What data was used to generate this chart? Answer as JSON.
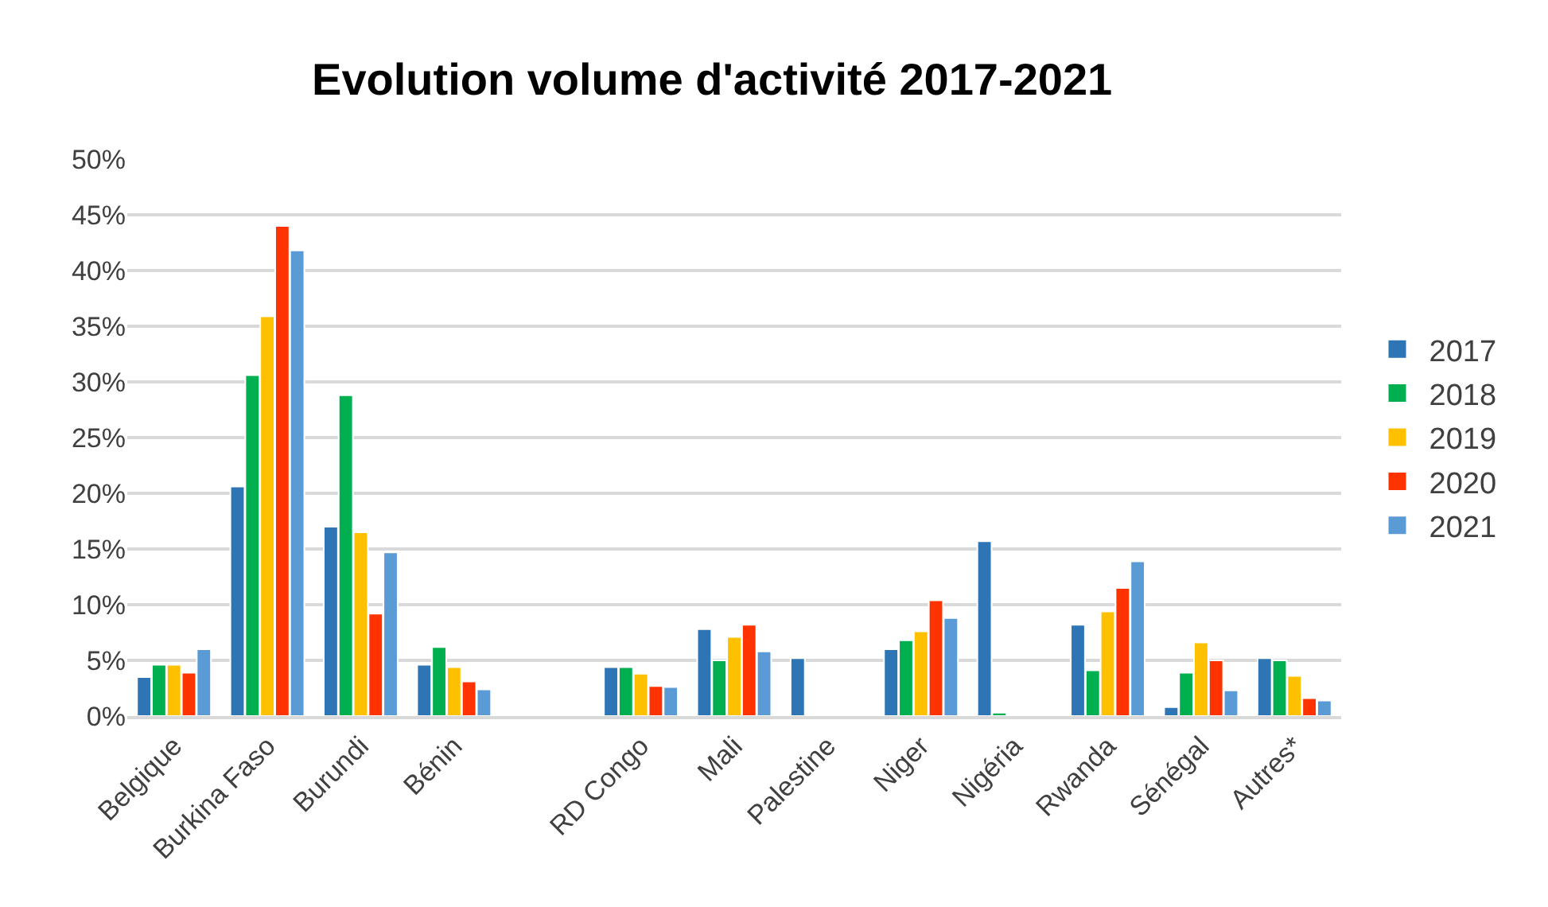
{
  "chart_data": {
    "type": "bar",
    "title": "Evolution volume d'activité 2017-2021",
    "categories": [
      "Belgique",
      "Burkina Faso",
      "Burundi",
      "Bénin",
      null,
      "RD Congo",
      "Mali",
      "Palestine",
      "Niger",
      "Nigéria",
      "Rwanda",
      "Sénégal",
      "Autres*"
    ],
    "series": [
      {
        "name": "2017",
        "color": "#2e75b6",
        "values": [
          3.5,
          20.6,
          17.0,
          4.6,
          null,
          4.4,
          7.8,
          5.2,
          6.0,
          15.7,
          8.2,
          0.8,
          5.2
        ]
      },
      {
        "name": "2018",
        "color": "#00b050",
        "values": [
          4.6,
          30.6,
          28.8,
          6.2,
          null,
          4.4,
          5.0,
          null,
          6.8,
          0.3,
          4.1,
          3.9,
          5.0
        ]
      },
      {
        "name": "2019",
        "color": "#ffc000",
        "values": [
          4.6,
          35.9,
          16.5,
          4.4,
          null,
          3.8,
          7.1,
          null,
          7.6,
          null,
          9.4,
          6.6,
          3.6
        ]
      },
      {
        "name": "2020",
        "color": "#ff3300",
        "values": [
          3.9,
          44.0,
          9.2,
          3.1,
          null,
          2.7,
          8.2,
          null,
          10.4,
          null,
          11.5,
          5.0,
          1.6
        ]
      },
      {
        "name": "2021",
        "color": "#5b9bd5",
        "values": [
          6.0,
          41.8,
          14.7,
          2.4,
          null,
          2.6,
          5.8,
          null,
          8.8,
          null,
          13.9,
          2.3,
          1.4
        ]
      }
    ],
    "ylim": [
      0,
      50
    ],
    "yticks": [
      {
        "value": 0,
        "label": "0%"
      },
      {
        "value": 5,
        "label": "5%"
      },
      {
        "value": 10,
        "label": "10%"
      },
      {
        "value": 15,
        "label": "15%"
      },
      {
        "value": 20,
        "label": "20%"
      },
      {
        "value": 25,
        "label": "25%"
      },
      {
        "value": 30,
        "label": "30%"
      },
      {
        "value": 35,
        "label": "35%"
      },
      {
        "value": 40,
        "label": "40%"
      },
      {
        "value": 45,
        "label": "45%"
      },
      {
        "value": 50,
        "label": "50%"
      }
    ],
    "grid": "y",
    "legend": "right"
  }
}
